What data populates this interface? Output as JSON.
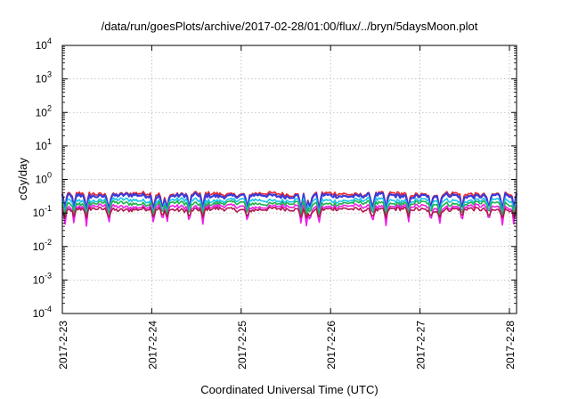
{
  "chart_data": {
    "type": "line",
    "title": "/data/run/goesPlots/archive/2017-02-28/01:00/flux/../bryn/5daysMoon.plot",
    "xlabel": "Coordinated Universal Time (UTC)",
    "ylabel": "cGy/day",
    "y_scale": "log",
    "ylim": [
      0.0001,
      10000
    ],
    "xlim_days": [
      0,
      5.08
    ],
    "grid": true,
    "y_ticks": [
      {
        "base": "10",
        "exp": "-4",
        "value": 0.0001
      },
      {
        "base": "10",
        "exp": "-3",
        "value": 0.001
      },
      {
        "base": "10",
        "exp": "-2",
        "value": 0.01
      },
      {
        "base": "10",
        "exp": "-1",
        "value": 0.1
      },
      {
        "base": "10",
        "exp": "0",
        "value": 1
      },
      {
        "base": "10",
        "exp": "1",
        "value": 10
      },
      {
        "base": "10",
        "exp": "2",
        "value": 100
      },
      {
        "base": "10",
        "exp": "3",
        "value": 1000
      },
      {
        "base": "10",
        "exp": "4",
        "value": 10000
      }
    ],
    "x_ticks": [
      {
        "label": "2017-2-23",
        "day": 0
      },
      {
        "label": "2017-2-24",
        "day": 1
      },
      {
        "label": "2017-2-25",
        "day": 2
      },
      {
        "label": "2017-2-26",
        "day": 3
      },
      {
        "label": "2017-2-27",
        "day": 4
      },
      {
        "label": "2017-2-28",
        "day": 5
      }
    ],
    "series": [
      {
        "color": "#e8232b",
        "base": 0.37,
        "dip_floor": 0.12
      },
      {
        "color": "#3b3bd9",
        "base": 0.33,
        "dip_floor": 0.1
      },
      {
        "color": "#18c3e8",
        "base": 0.24,
        "dip_floor": 0.09
      },
      {
        "color": "#1db34a",
        "base": 0.195,
        "dip_floor": 0.08
      },
      {
        "color": "#ee1ee8",
        "base": 0.155,
        "dip_floor": 0.04
      },
      {
        "color": "#b0194f",
        "base": 0.128,
        "dip_floor": 0.07
      }
    ],
    "dips_days": [
      0.03,
      0.13,
      0.27,
      0.52,
      1.02,
      1.12,
      1.17,
      1.42,
      1.57,
      2.07,
      2.67,
      2.73,
      2.77,
      2.87,
      3.47,
      3.62,
      3.87,
      4.12,
      4.22,
      4.47,
      4.77,
      4.92,
      5.05
    ]
  }
}
